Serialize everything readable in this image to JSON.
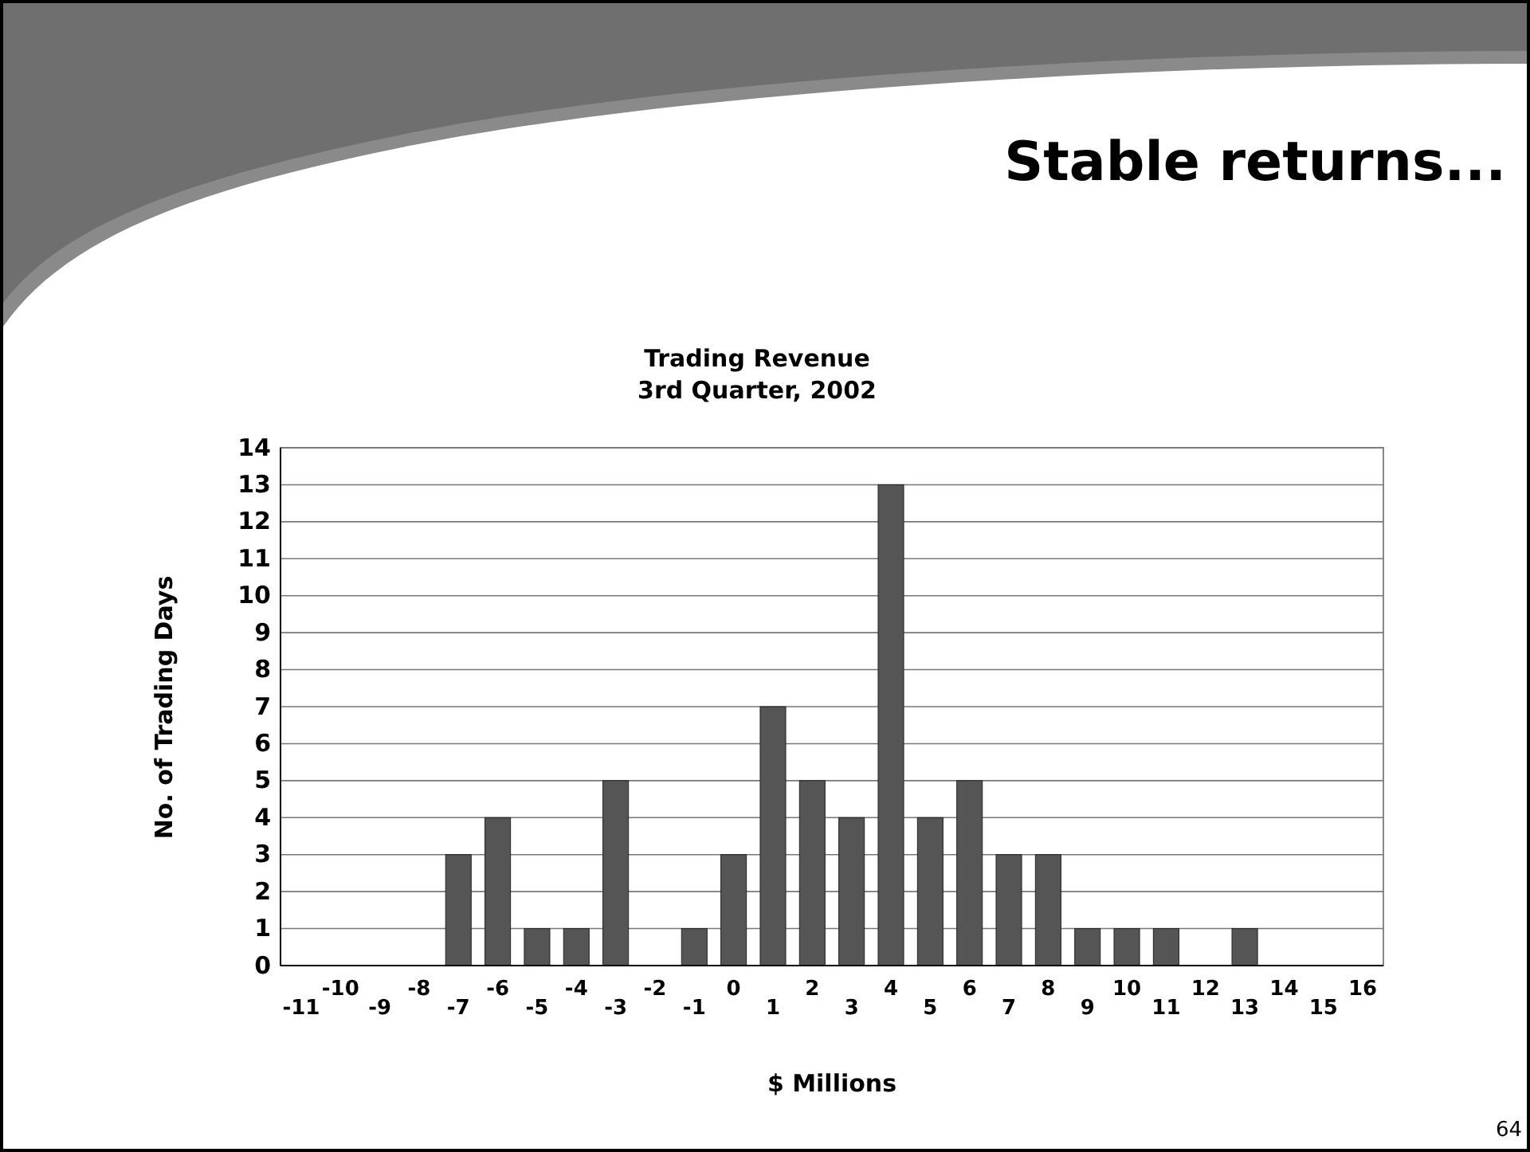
{
  "chart_data": {
    "type": "bar",
    "title": "Stable returns...",
    "subtitle": "Trading Revenue\n3rd Quarter, 2002",
    "xlabel": "$ Millions",
    "ylabel": "No. of Trading Days",
    "categories": [
      "-11",
      "-10",
      "-9",
      "-8",
      "-7",
      "-6",
      "-5",
      "-4",
      "-3",
      "-2",
      "-1",
      "0",
      "1",
      "2",
      "3",
      "4",
      "5",
      "6",
      "7",
      "8",
      "9",
      "10",
      "11",
      "12",
      "13",
      "14",
      "15",
      "16"
    ],
    "values": [
      0,
      0,
      0,
      0,
      3,
      4,
      1,
      1,
      5,
      0,
      1,
      3,
      7,
      5,
      4,
      13,
      4,
      5,
      3,
      3,
      1,
      1,
      1,
      0,
      1,
      0,
      0,
      0
    ],
    "color": "#555555",
    "ylim": [
      0,
      14
    ],
    "yticks": [
      0,
      1,
      2,
      3,
      4,
      5,
      6,
      7,
      8,
      9,
      10,
      11,
      12,
      13,
      14
    ],
    "grid": "y",
    "annotations": [
      "64"
    ]
  }
}
